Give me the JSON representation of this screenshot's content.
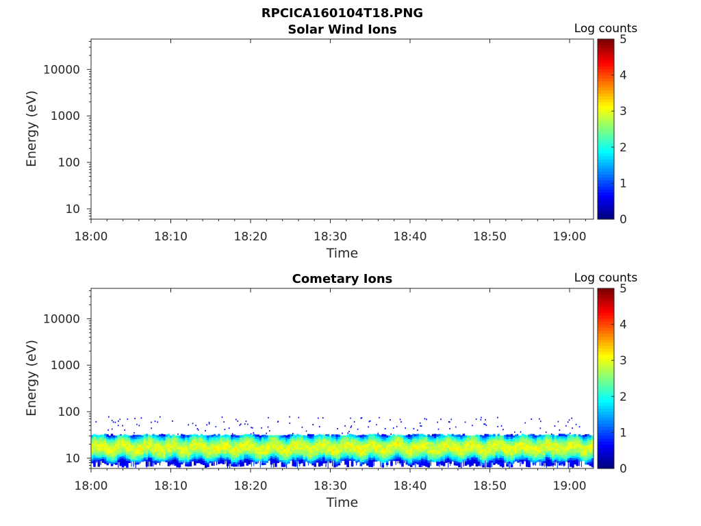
{
  "figure": {
    "title": "RPCICA160104T18.PNG"
  },
  "chart_data": [
    {
      "type": "heatmap",
      "title": "Solar Wind Ions",
      "xlabel": "Time",
      "ylabel": "Energy (eV)",
      "x_ticks": [
        "18:00",
        "18:10",
        "18:20",
        "18:30",
        "18:40",
        "18:50",
        "19:00"
      ],
      "x_range_minutes": [
        0,
        63
      ],
      "y_scale": "log",
      "y_ticks": [
        "10",
        "100",
        "1000",
        "10000"
      ],
      "y_range": [
        6,
        45000
      ],
      "colorbar": {
        "title": "Log counts",
        "ticks": [
          "0",
          "1",
          "2",
          "3",
          "4",
          "5"
        ],
        "range": [
          0,
          5
        ],
        "colormap": "jet"
      },
      "data_summary": "no counts recorded"
    },
    {
      "type": "heatmap",
      "title": "Cometary Ions",
      "xlabel": "Time",
      "ylabel": "Energy (eV)",
      "x_ticks": [
        "18:00",
        "18:10",
        "18:20",
        "18:30",
        "18:40",
        "18:50",
        "19:00"
      ],
      "x_range_minutes": [
        0,
        63
      ],
      "y_scale": "log",
      "y_ticks": [
        "10",
        "100",
        "1000",
        "10000"
      ],
      "y_range": [
        6,
        45000
      ],
      "colorbar": {
        "title": "Log counts",
        "ticks": [
          "0",
          "1",
          "2",
          "3",
          "4",
          "5"
        ],
        "range": [
          0,
          5
        ],
        "colormap": "jet"
      },
      "band": {
        "energy_low_eV": 7,
        "energy_high_eV": 32,
        "peak_energy_eV": 17,
        "peak_log_counts": 3.0,
        "sparse_points_max_eV": 80
      }
    }
  ]
}
